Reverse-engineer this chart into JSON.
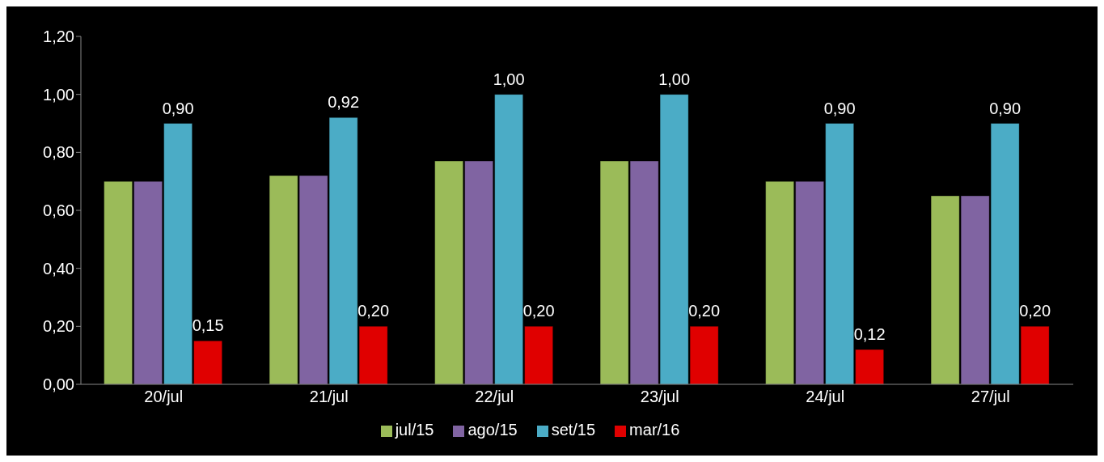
{
  "chart_data": {
    "type": "bar",
    "categories": [
      "20/jul",
      "21/jul",
      "22/jul",
      "23/jul",
      "24/jul",
      "27/jul"
    ],
    "series": [
      {
        "name": "jul/15",
        "color": "#9bbb59",
        "values": [
          0.7,
          0.72,
          0.77,
          0.77,
          0.7,
          0.65
        ]
      },
      {
        "name": "ago/15",
        "color": "#8064a2",
        "values": [
          0.7,
          0.72,
          0.77,
          0.77,
          0.7,
          0.65
        ]
      },
      {
        "name": "set/15",
        "color": "#4bacc6",
        "values": [
          0.9,
          0.92,
          1.0,
          1.0,
          0.9,
          0.9
        ],
        "value_labels": [
          "0,90",
          "0,92",
          "1,00",
          "1,00",
          "0,90",
          "0,90"
        ]
      },
      {
        "name": "mar/16",
        "color": "#e00000",
        "values": [
          0.15,
          0.2,
          0.2,
          0.2,
          0.12,
          0.2
        ],
        "value_labels": [
          "0,15",
          "0,20",
          "0,20",
          "0,20",
          "0,12",
          "0,20"
        ]
      }
    ],
    "ylim": [
      0,
      1.2
    ],
    "yticks": [
      {
        "value": 0,
        "label": "0,00"
      },
      {
        "value": 0.2,
        "label": "0,20"
      },
      {
        "value": 0.4,
        "label": "0,40"
      },
      {
        "value": 0.6,
        "label": "0,60"
      },
      {
        "value": 0.8,
        "label": "0,80"
      },
      {
        "value": 1.0,
        "label": "1,00"
      },
      {
        "value": 1.2,
        "label": "1,20"
      }
    ],
    "grid": false,
    "legend": "bottom"
  }
}
